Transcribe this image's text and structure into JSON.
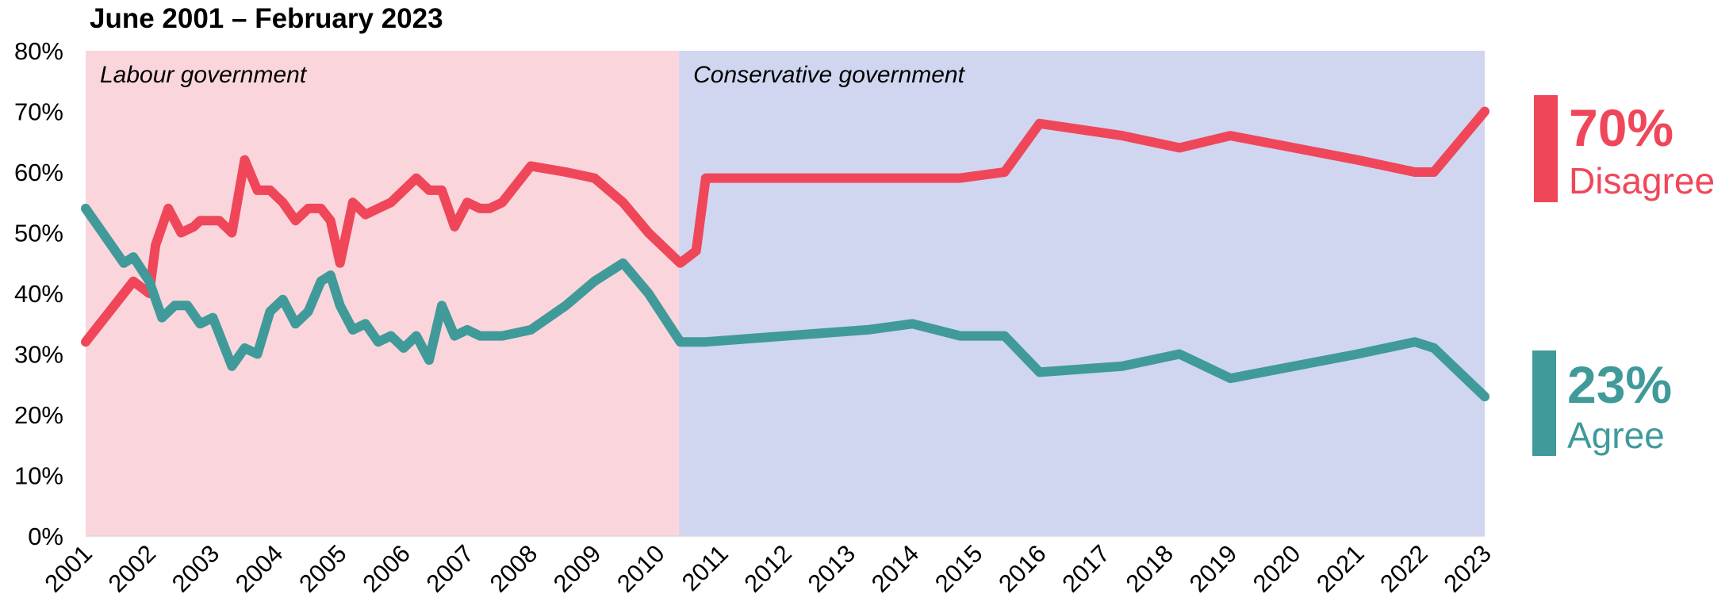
{
  "title": "June 2001 – February 2023",
  "chart_data": {
    "type": "line",
    "title": "June 2001 – February 2023",
    "ylim": [
      0,
      80
    ],
    "xlim": [
      2001,
      2023
    ],
    "y_ticks": [
      "0%",
      "10%",
      "20%",
      "30%",
      "40%",
      "50%",
      "60%",
      "70%",
      "80%"
    ],
    "x_ticks": [
      "2001",
      "2002",
      "2003",
      "2004",
      "2005",
      "2006",
      "2007",
      "2008",
      "2009",
      "2010",
      "2011",
      "2012",
      "2013",
      "2014",
      "2015",
      "2016",
      "2017",
      "2018",
      "2019",
      "2020",
      "2021",
      "2022",
      "2023"
    ],
    "grid": false,
    "periods": [
      {
        "label": "Labour government",
        "start": 2001,
        "end": 2010.33,
        "color": "#fad6dc"
      },
      {
        "label": "Conservative government",
        "start": 2010.33,
        "end": 2023,
        "color": "#d0d6f0"
      }
    ],
    "series": [
      {
        "name": "Disagree",
        "color": "#ef4759",
        "final_label": "70%",
        "x": [
          2001.0,
          2001.6,
          2001.75,
          2002.0,
          2002.1,
          2002.3,
          2002.5,
          2002.7,
          2002.8,
          2003.1,
          2003.3,
          2003.5,
          2003.7,
          2003.9,
          2004.1,
          2004.3,
          2004.5,
          2004.7,
          2004.85,
          2005.0,
          2005.2,
          2005.4,
          2005.6,
          2005.8,
          2006.0,
          2006.2,
          2006.4,
          2006.6,
          2006.8,
          2007.0,
          2007.2,
          2007.35,
          2007.55,
          2008.0,
          2008.55,
          2009.0,
          2009.45,
          2009.85,
          2010.35,
          2010.6,
          2010.75,
          2012.0,
          2014.0,
          2014.75,
          2015.45,
          2016.0,
          2017.3,
          2018.2,
          2019.0,
          2020.0,
          2021.0,
          2021.9,
          2022.2,
          2023.0
        ],
        "values": [
          32,
          40,
          42,
          40,
          48,
          54,
          50,
          51,
          52,
          52,
          50,
          62,
          57,
          57,
          55,
          52,
          54,
          54,
          52,
          45,
          55,
          53,
          54,
          55,
          57,
          59,
          57,
          57,
          51,
          55,
          54,
          54,
          55,
          61,
          60,
          59,
          55,
          50,
          45,
          47,
          59,
          59,
          59,
          59,
          60,
          68,
          66,
          64,
          66,
          64,
          62,
          60,
          60,
          70
        ]
      },
      {
        "name": "Agree",
        "color": "#409a9a",
        "final_label": "23%",
        "x": [
          2001.0,
          2001.6,
          2001.75,
          2002.0,
          2002.2,
          2002.4,
          2002.6,
          2002.8,
          2003.0,
          2003.3,
          2003.5,
          2003.7,
          2003.9,
          2004.1,
          2004.3,
          2004.5,
          2004.7,
          2004.85,
          2005.0,
          2005.2,
          2005.4,
          2005.6,
          2005.8,
          2006.0,
          2006.2,
          2006.4,
          2006.6,
          2006.8,
          2007.0,
          2007.2,
          2007.35,
          2007.55,
          2008.0,
          2008.55,
          2009.0,
          2009.45,
          2009.85,
          2010.35,
          2010.6,
          2010.75,
          2012.0,
          2013.3,
          2014.0,
          2014.75,
          2015.45,
          2016.0,
          2017.3,
          2018.2,
          2019.0,
          2020.0,
          2021.0,
          2021.9,
          2022.2,
          2023.0
        ],
        "values": [
          54,
          45,
          46,
          42,
          36,
          38,
          38,
          35,
          36,
          28,
          31,
          30,
          37,
          39,
          35,
          37,
          42,
          43,
          38,
          34,
          35,
          32,
          33,
          31,
          33,
          29,
          38,
          33,
          34,
          33,
          33,
          33,
          34,
          38,
          42,
          45,
          40,
          32,
          32,
          32,
          33,
          34,
          35,
          33,
          33,
          27,
          28,
          30,
          26,
          28,
          30,
          32,
          31,
          23
        ]
      }
    ]
  },
  "callouts": [
    {
      "value": "70%",
      "label": "Disagree",
      "color": "#ef4759"
    },
    {
      "value": "23%",
      "label": "Agree",
      "color": "#409a9a"
    }
  ]
}
